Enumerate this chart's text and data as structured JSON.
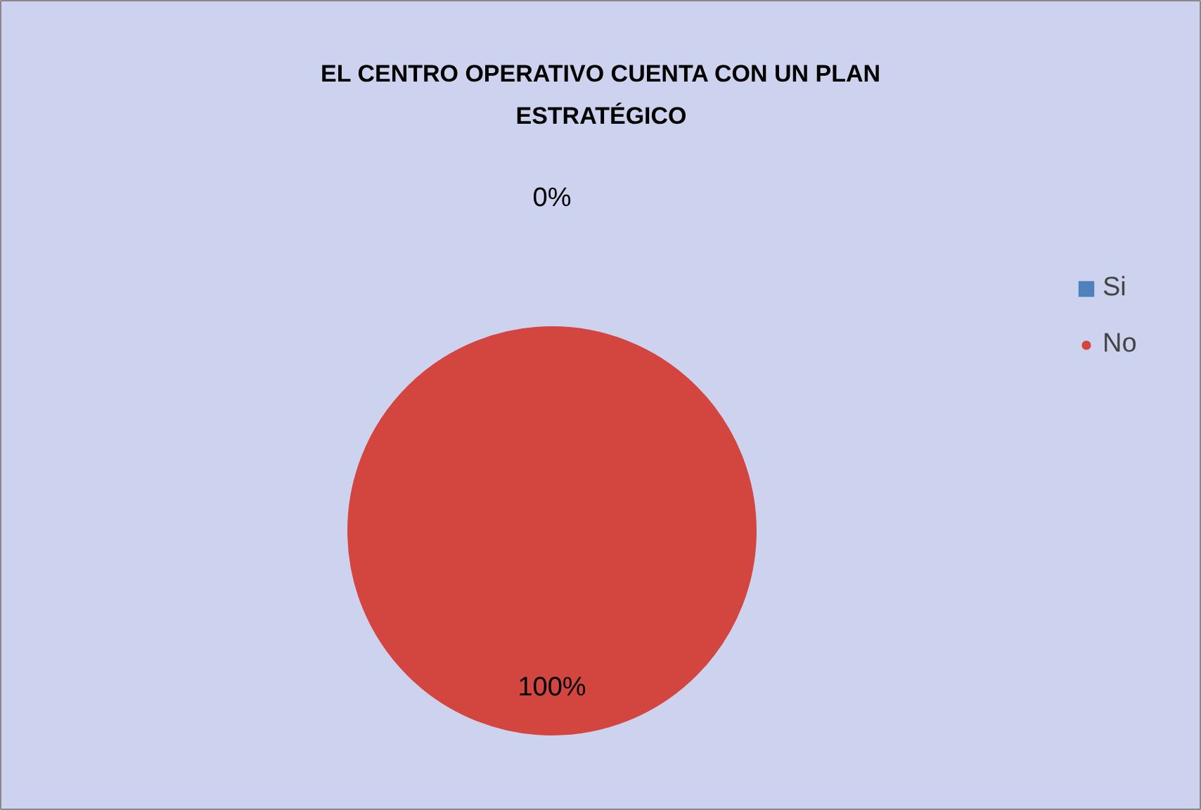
{
  "chart_data": {
    "type": "pie",
    "title": "EL CENTRO OPERATIVO CUENTA CON UN PLAN ESTRATÉGICO",
    "categories": [
      "Si",
      "No"
    ],
    "values": [
      0,
      100
    ],
    "colors": [
      "#4f81bd",
      "#d34640"
    ],
    "value_labels": [
      "0%",
      "100%"
    ],
    "legend": "right"
  }
}
